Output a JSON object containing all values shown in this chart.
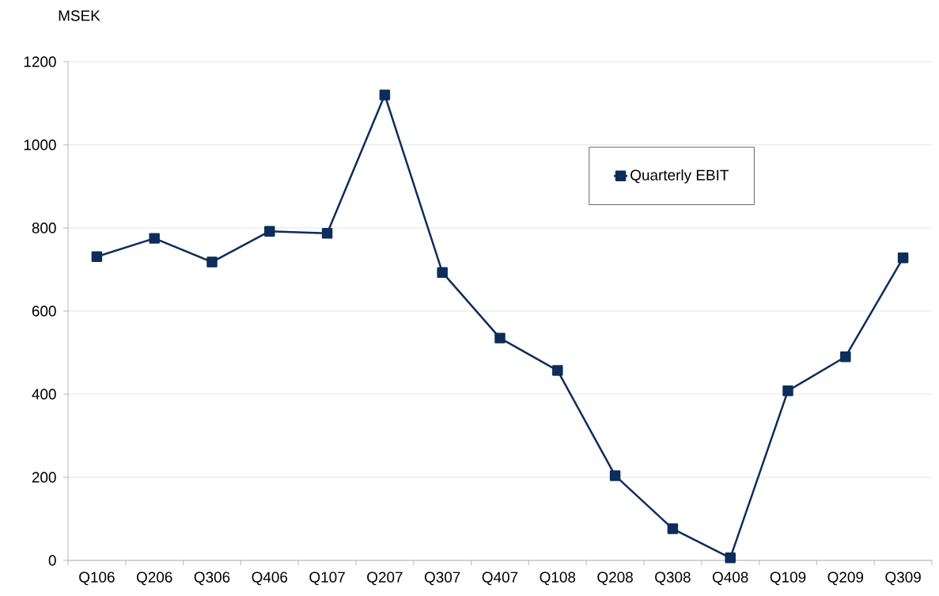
{
  "chart_data": {
    "type": "line",
    "ylabel": "MSEK",
    "categories": [
      "Q106",
      "Q206",
      "Q306",
      "Q406",
      "Q107",
      "Q207",
      "Q307",
      "Q407",
      "Q108",
      "Q208",
      "Q308",
      "Q408",
      "Q109",
      "Q209",
      "Q309"
    ],
    "series": [
      {
        "name": "Quarterly EBIT",
        "color": "#0d2d5a",
        "values": [
          731,
          775,
          718,
          792,
          787,
          1120,
          693,
          535,
          457,
          204,
          76,
          6,
          408,
          490,
          728
        ]
      }
    ],
    "ylim": [
      0,
      1200
    ],
    "yticks": [
      0,
      200,
      400,
      600,
      800,
      1000,
      1200
    ],
    "grid": "y",
    "legend": "top right",
    "marker": "square",
    "line_style": "solid"
  }
}
